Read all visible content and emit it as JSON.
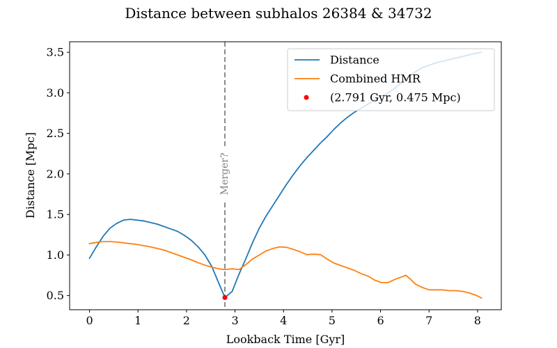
{
  "chart_data": {
    "type": "line",
    "title": "Distance between subhalos 26384 & 34732",
    "xlabel": "Lookback Time [Gyr]",
    "ylabel": "Distance [Mpc]",
    "xlim": [
      -0.41,
      8.49
    ],
    "ylim": [
      0.325,
      3.63
    ],
    "xticks": [
      0,
      1,
      2,
      3,
      4,
      5,
      6,
      7,
      8
    ],
    "yticks": [
      0.5,
      1.0,
      1.5,
      2.0,
      2.5,
      3.0,
      3.5
    ],
    "ytick_labels": [
      "0.5",
      "1.0",
      "1.5",
      "2.0",
      "2.5",
      "3.0",
      "3.5"
    ],
    "grid": false,
    "legend_position": "top-right",
    "series": [
      {
        "name": "Distance",
        "color": "#1f77b4",
        "x": [
          0.0,
          0.14,
          0.28,
          0.42,
          0.56,
          0.7,
          0.84,
          0.98,
          1.12,
          1.26,
          1.4,
          1.54,
          1.68,
          1.82,
          1.96,
          2.1,
          2.24,
          2.38,
          2.52,
          2.66,
          2.791,
          2.94,
          3.08,
          3.22,
          3.36,
          3.5,
          3.64,
          3.78,
          3.92,
          4.06,
          4.2,
          4.34,
          4.48,
          4.62,
          4.76,
          4.9,
          5.04,
          5.18,
          5.32,
          5.46,
          5.6,
          5.74,
          5.88,
          6.02,
          6.16,
          6.3,
          6.44,
          6.58,
          6.72,
          6.86,
          7.0,
          7.14,
          7.28,
          7.42,
          7.56,
          7.7,
          7.84,
          7.98,
          8.08
        ],
        "y": [
          0.96,
          1.1,
          1.23,
          1.33,
          1.39,
          1.43,
          1.44,
          1.43,
          1.42,
          1.4,
          1.38,
          1.35,
          1.32,
          1.29,
          1.24,
          1.18,
          1.1,
          1.0,
          0.86,
          0.66,
          0.475,
          0.55,
          0.76,
          0.95,
          1.15,
          1.33,
          1.48,
          1.61,
          1.74,
          1.87,
          1.99,
          2.1,
          2.2,
          2.29,
          2.38,
          2.46,
          2.55,
          2.63,
          2.7,
          2.76,
          2.81,
          2.86,
          2.91,
          2.96,
          3.0,
          3.06,
          3.13,
          3.2,
          3.26,
          3.31,
          3.34,
          3.37,
          3.39,
          3.41,
          3.43,
          3.45,
          3.47,
          3.49,
          3.5
        ]
      },
      {
        "name": "Combined HMR",
        "color": "#ff7f0e",
        "x": [
          0.0,
          0.14,
          0.28,
          0.42,
          0.56,
          0.7,
          0.84,
          0.98,
          1.12,
          1.26,
          1.4,
          1.54,
          1.68,
          1.82,
          1.96,
          2.1,
          2.24,
          2.38,
          2.52,
          2.66,
          2.8,
          2.94,
          3.08,
          3.22,
          3.36,
          3.5,
          3.64,
          3.78,
          3.92,
          4.06,
          4.2,
          4.34,
          4.48,
          4.62,
          4.76,
          4.9,
          5.04,
          5.18,
          5.32,
          5.46,
          5.6,
          5.74,
          5.88,
          6.02,
          6.16,
          6.3,
          6.44,
          6.52,
          6.62,
          6.72,
          6.86,
          7.0,
          7.14,
          7.28,
          7.42,
          7.56,
          7.7,
          7.84,
          7.98,
          8.08
        ],
        "y": [
          1.14,
          1.155,
          1.165,
          1.165,
          1.16,
          1.15,
          1.14,
          1.13,
          1.115,
          1.1,
          1.08,
          1.06,
          1.03,
          1.0,
          0.97,
          0.94,
          0.905,
          0.875,
          0.85,
          0.83,
          0.82,
          0.83,
          0.82,
          0.88,
          0.95,
          1.0,
          1.05,
          1.08,
          1.1,
          1.095,
          1.07,
          1.04,
          1.005,
          1.01,
          1.005,
          0.95,
          0.9,
          0.87,
          0.84,
          0.81,
          0.77,
          0.74,
          0.69,
          0.66,
          0.66,
          0.7,
          0.73,
          0.75,
          0.7,
          0.64,
          0.6,
          0.57,
          0.57,
          0.57,
          0.56,
          0.56,
          0.55,
          0.53,
          0.5,
          0.47
        ]
      },
      {
        "name": "(2.791 Gyr, 0.475 Mpc)",
        "type": "scatter",
        "color": "#ff0000",
        "x": [
          2.791
        ],
        "y": [
          0.475
        ]
      }
    ],
    "annotations": [
      {
        "type": "vline",
        "x": 2.791,
        "color": "#808080",
        "style": "dashed"
      },
      {
        "type": "text",
        "text": "Merger?",
        "x": 2.791,
        "y": 2.0,
        "color": "#808080",
        "rotation": -90
      }
    ]
  }
}
